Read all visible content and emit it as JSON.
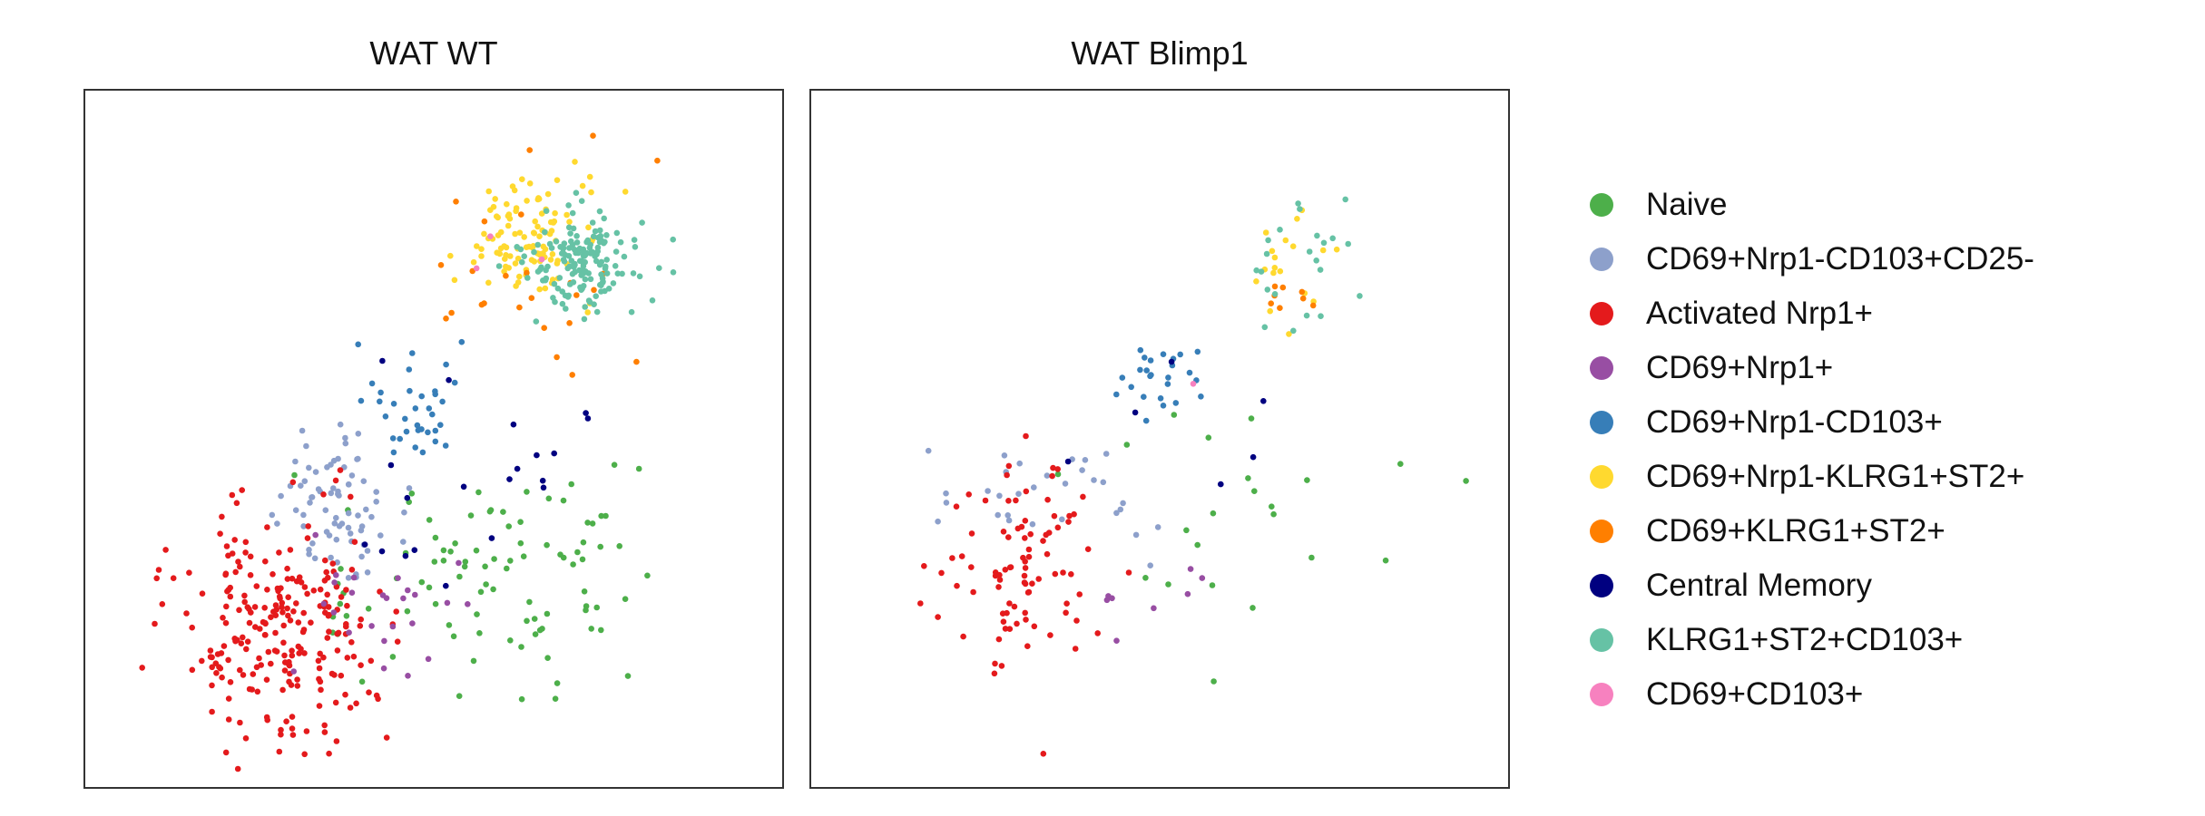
{
  "chart_data": {
    "type": "scatter",
    "panels": [
      {
        "title": "WAT WT",
        "clusters": [
          {
            "name": "Naive",
            "n": 95,
            "cx": 0.58,
            "cy": 0.29,
            "sx": 0.13,
            "sy": 0.08
          },
          {
            "name": "CD69+Nrp1-CD103+CD25-",
            "n": 75,
            "cx": 0.36,
            "cy": 0.4,
            "sx": 0.05,
            "sy": 0.05
          },
          {
            "name": "Activated Nrp1+",
            "n": 240,
            "cx": 0.27,
            "cy": 0.22,
            "sx": 0.075,
            "sy": 0.085
          },
          {
            "name": "CD69+Nrp1+",
            "n": 25,
            "cx": 0.42,
            "cy": 0.25,
            "sx": 0.06,
            "sy": 0.06
          },
          {
            "name": "CD69+Nrp1-CD103+",
            "n": 35,
            "cx": 0.48,
            "cy": 0.55,
            "sx": 0.05,
            "sy": 0.04
          },
          {
            "name": "CD69+Nrp1-KLRG1+ST2+",
            "n": 110,
            "cx": 0.64,
            "cy": 0.8,
            "sx": 0.05,
            "sy": 0.05
          },
          {
            "name": "CD69+KLRG1+ST2+",
            "n": 25,
            "cx": 0.63,
            "cy": 0.76,
            "sx": 0.09,
            "sy": 0.08
          },
          {
            "name": "Central Memory",
            "n": 20,
            "cx": 0.55,
            "cy": 0.44,
            "sx": 0.1,
            "sy": 0.08
          },
          {
            "name": "KLRG1+ST2+CD103+",
            "n": 160,
            "cx": 0.73,
            "cy": 0.77,
            "sx": 0.05,
            "sy": 0.04
          },
          {
            "name": "CD69+CD103+",
            "n": 3,
            "cx": 0.6,
            "cy": 0.77,
            "sx": 0.05,
            "sy": 0.03
          }
        ]
      },
      {
        "title": "WAT Blimp1",
        "clusters": [
          {
            "name": "Naive",
            "n": 22,
            "cx": 0.65,
            "cy": 0.35,
            "sx": 0.12,
            "sy": 0.09
          },
          {
            "name": "CD69+Nrp1-CD103+CD25-",
            "n": 30,
            "cx": 0.34,
            "cy": 0.42,
            "sx": 0.08,
            "sy": 0.04
          },
          {
            "name": "Activated Nrp1+",
            "n": 90,
            "cx": 0.3,
            "cy": 0.3,
            "sx": 0.07,
            "sy": 0.09
          },
          {
            "name": "CD69+Nrp1+",
            "n": 8,
            "cx": 0.44,
            "cy": 0.28,
            "sx": 0.06,
            "sy": 0.05
          },
          {
            "name": "CD69+Nrp1-CD103+",
            "n": 25,
            "cx": 0.5,
            "cy": 0.58,
            "sx": 0.03,
            "sy": 0.03
          },
          {
            "name": "CD69+Nrp1-KLRG1+ST2+",
            "n": 18,
            "cx": 0.67,
            "cy": 0.76,
            "sx": 0.04,
            "sy": 0.05
          },
          {
            "name": "CD69+KLRG1+ST2+",
            "n": 8,
            "cx": 0.69,
            "cy": 0.72,
            "sx": 0.03,
            "sy": 0.03
          },
          {
            "name": "Central Memory",
            "n": 6,
            "cx": 0.6,
            "cy": 0.48,
            "sx": 0.12,
            "sy": 0.06
          },
          {
            "name": "KLRG1+ST2+CD103+",
            "n": 22,
            "cx": 0.72,
            "cy": 0.78,
            "sx": 0.04,
            "sy": 0.05
          },
          {
            "name": "CD69+CD103+",
            "n": 1,
            "cx": 0.55,
            "cy": 0.6,
            "sx": 0.02,
            "sy": 0.02
          }
        ]
      }
    ],
    "xlim": [
      0,
      1
    ],
    "ylim": [
      0,
      1
    ],
    "grid": false,
    "axis_ticks": false,
    "legend": {
      "placement": "right",
      "entries": [
        {
          "label": "Naive",
          "color": "#4daf4a"
        },
        {
          "label": "CD69+Nrp1-CD103+CD25-",
          "color": "#8da0cb"
        },
        {
          "label": "Activated Nrp1+",
          "color": "#e41a1c"
        },
        {
          "label": "CD69+Nrp1+",
          "color": "#984ea3"
        },
        {
          "label": "CD69+Nrp1-CD103+",
          "color": "#377eb8"
        },
        {
          "label": "CD69+Nrp1-KLRG1+ST2+",
          "color": "#ffd92f"
        },
        {
          "label": "CD69+KLRG1+ST2+",
          "color": "#ff7f00"
        },
        {
          "label": "Central Memory",
          "color": "#000080"
        },
        {
          "label": "KLRG1+ST2+CD103+",
          "color": "#66c2a5"
        },
        {
          "label": "CD69+CD103+",
          "color": "#f781bf"
        }
      ]
    }
  }
}
